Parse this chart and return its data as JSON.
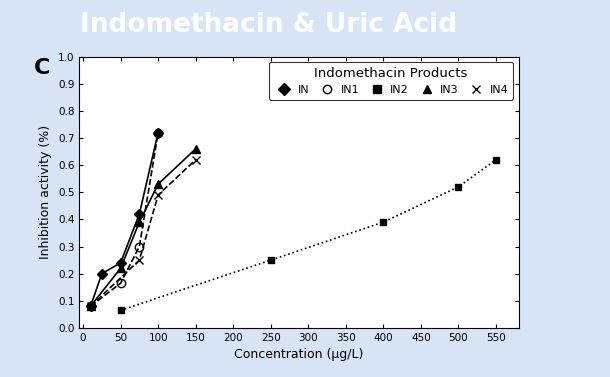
{
  "title": "Indomethacin & Uric Acid",
  "panel_label": "C",
  "legend_title": "Indomethacin Products",
  "xlabel": "Concentration (μg/L)",
  "ylabel": "Inhibition activity (%)",
  "title_bg_color": "#3d85c8",
  "outer_bg_color": "#d6e4f5",
  "plot_bg_color": "#ffffff",
  "right_stripe_color": "#3d85c8",
  "title_text_color": "#ffffff",
  "series": [
    {
      "label": "IN",
      "x": [
        10,
        25,
        50,
        75,
        100
      ],
      "y": [
        0.08,
        0.2,
        0.24,
        0.42,
        0.72
      ],
      "marker": "D",
      "linestyle": "-",
      "markersize": 5,
      "fillstyle": "full"
    },
    {
      "label": "IN1",
      "x": [
        10,
        50,
        75,
        100
      ],
      "y": [
        0.08,
        0.165,
        0.3,
        0.72
      ],
      "marker": "o",
      "linestyle": "--",
      "markersize": 6,
      "fillstyle": "none"
    },
    {
      "label": "IN2",
      "x": [
        50,
        250,
        400,
        500,
        550
      ],
      "y": [
        0.065,
        0.25,
        0.39,
        0.52,
        0.62
      ],
      "marker": "s",
      "linestyle": ":",
      "markersize": 5,
      "fillstyle": "full"
    },
    {
      "label": "IN3",
      "x": [
        10,
        50,
        75,
        100,
        150
      ],
      "y": [
        0.08,
        0.22,
        0.39,
        0.53,
        0.66
      ],
      "marker": "^",
      "linestyle": "-",
      "markersize": 6,
      "fillstyle": "full"
    },
    {
      "label": "IN4",
      "x": [
        10,
        75,
        100,
        150
      ],
      "y": [
        0.08,
        0.25,
        0.49,
        0.62
      ],
      "marker": "x",
      "linestyle": "--",
      "markersize": 6,
      "fillstyle": "full"
    }
  ],
  "xlim": [
    -5,
    580
  ],
  "ylim": [
    0.0,
    1.0
  ],
  "xticks": [
    0,
    50,
    100,
    150,
    200,
    250,
    300,
    350,
    400,
    450,
    500,
    550
  ],
  "yticks": [
    0.0,
    0.1,
    0.2,
    0.3,
    0.4,
    0.5,
    0.6,
    0.7,
    0.8,
    0.9,
    1.0
  ]
}
